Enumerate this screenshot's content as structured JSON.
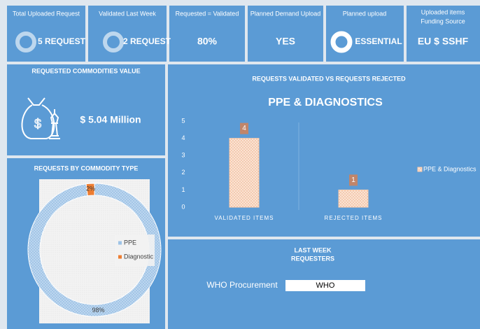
{
  "tiles": [
    {
      "title": [
        "Total Uploaded  Request"
      ],
      "value": "5 REQUEST"
    },
    {
      "title": [
        "Validated Last Week"
      ],
      "value": "2 REQUEST"
    },
    {
      "title": [
        "Requested = Validated"
      ],
      "value": "80%"
    },
    {
      "title": [
        "Planned Demand Upload"
      ],
      "value": "YES"
    },
    {
      "title": [
        "Planned upload"
      ],
      "value": "ESSENTIAL"
    },
    {
      "title": [
        "Uploaded items",
        "Funding Source"
      ],
      "value": "EU $ SSHF"
    }
  ],
  "commodities_value": {
    "title": "REQUESTED COMMODITIES  VALUE",
    "value": "$ 5.04 Million"
  },
  "requesters": {
    "title": [
      "LAST WEEK",
      "REQUESTERS"
    ],
    "label": "WHO Procurement",
    "value": "WHO"
  },
  "chart_data": [
    {
      "type": "pie",
      "title": "REQUESTS BY COMMODITY TYPE",
      "categories": [
        "PPE",
        "Diagnostic"
      ],
      "values": [
        98,
        2
      ],
      "value_labels": [
        "98%",
        "2%"
      ],
      "colors": [
        "#9dc3e6",
        "#ed7d31"
      ]
    },
    {
      "type": "bar",
      "panel_title": "REQUESTS VALIDATED VS REQUESTS REJECTED",
      "title": "PPE & DIAGNOSTICS",
      "categories": [
        "VALIDATED ITEMS",
        "REJECTED ITEMS"
      ],
      "series": [
        {
          "name": "PPE & Diagnostics",
          "color": "#f8cbad",
          "values": [
            4,
            1
          ]
        }
      ],
      "ylim": [
        0,
        5
      ],
      "yticks": [
        0,
        1,
        2,
        3,
        4,
        5
      ]
    }
  ]
}
